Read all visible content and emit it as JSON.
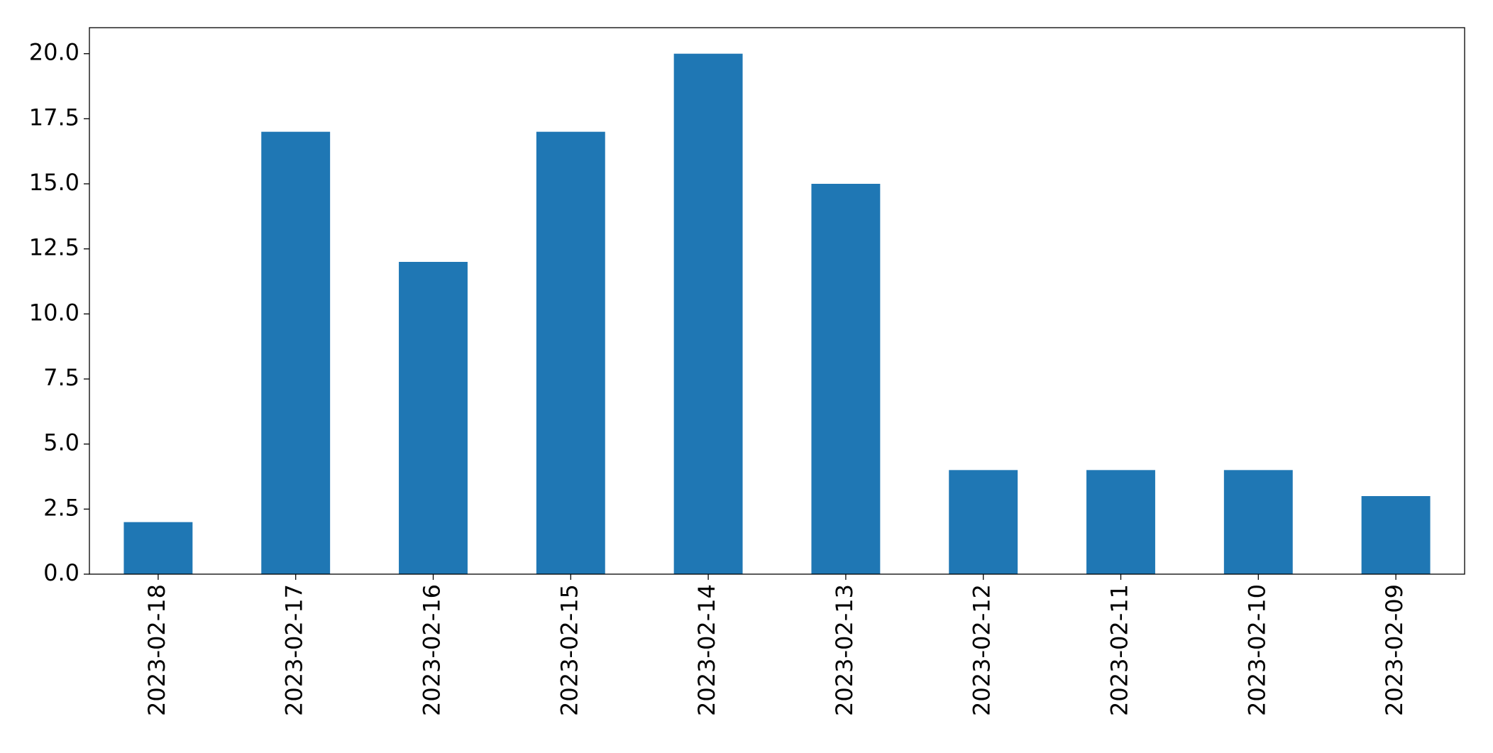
{
  "chart_data": {
    "type": "bar",
    "categories": [
      "2023-02-18",
      "2023-02-17",
      "2023-02-16",
      "2023-02-15",
      "2023-02-14",
      "2023-02-13",
      "2023-02-12",
      "2023-02-11",
      "2023-02-10",
      "2023-02-09"
    ],
    "values": [
      2,
      17,
      12,
      17,
      20,
      15,
      4,
      4,
      4,
      3
    ],
    "color": "#1f77b4",
    "ylim": [
      0,
      21
    ],
    "yticks": [
      {
        "value": 0,
        "label": "0.0"
      },
      2.5,
      {
        "value": 5,
        "label": "5.0"
      },
      7.5,
      {
        "value": 10,
        "label": "10.0"
      },
      12.5,
      {
        "value": 15,
        "label": "15.0"
      },
      17.5,
      {
        "value": 20,
        "label": "20.0"
      }
    ],
    "grid": false
  }
}
